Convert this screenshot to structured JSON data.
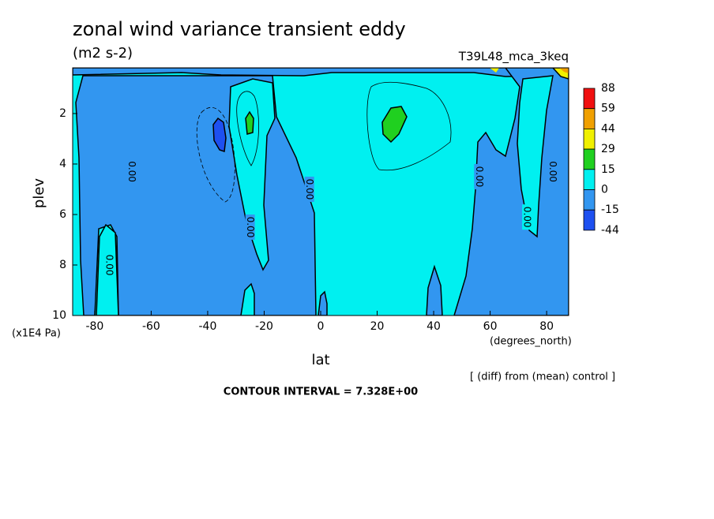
{
  "chart_data": {
    "type": "contour",
    "title": "zonal wind variance transient eddy",
    "subtitle": "(m2 s-2)",
    "run_label": "T39L48_mca_3keq",
    "x_label": "lat",
    "x_unit": "(degrees_north)",
    "y_label": "plev",
    "y_unit": "(x1E4 Pa)",
    "note": "[ (diff) from (mean) control ]",
    "contour_interval": "CONTOUR INTERVAL = 7.328E+00",
    "xlim": [
      -87.8,
      87.8
    ],
    "xticks": [
      -80,
      -60,
      -40,
      -20,
      0,
      20,
      40,
      60,
      80
    ],
    "ylim": [
      10,
      0.19
    ],
    "yticks": [
      2,
      4,
      6,
      8,
      10
    ],
    "colorbar": {
      "levels": [
        88,
        59,
        44,
        29,
        15,
        0,
        -15,
        -44
      ],
      "colors": [
        "#f01010",
        "#f0a000",
        "#f0f000",
        "#20d020",
        "#00f0f0",
        "#3296f0",
        "#1e50f0"
      ]
    },
    "contour_labels": [
      "0.00",
      "0.00",
      "0.00",
      "0.00",
      "0.00",
      "0.00",
      "0.00"
    ]
  }
}
